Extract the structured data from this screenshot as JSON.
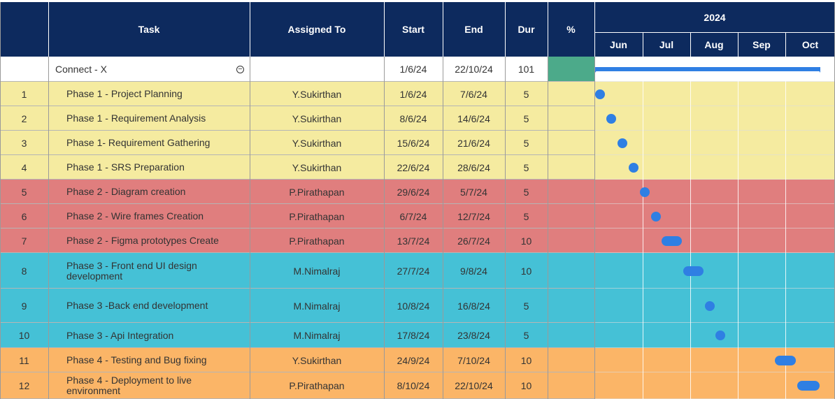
{
  "headers": {
    "task": "Task",
    "assigned": "Assigned To",
    "start": "Start",
    "end": "End",
    "dur": "Dur",
    "pct": "%",
    "year": "2024",
    "months": [
      "Jun",
      "Jul",
      "Aug",
      "Sep",
      "Oct"
    ]
  },
  "summary": {
    "task": "Connect - X",
    "start": "1/6/24",
    "end": "22/10/24",
    "dur": "101",
    "collapse_icon": "minus-circle-icon",
    "pct_color": "#4caa8a"
  },
  "colors": {
    "header": "#0d2a5e",
    "phase1": "#f5eba0",
    "phase2": "#e07e7e",
    "phase3": "#45c1d6",
    "phase4": "#fbb567",
    "bar": "#2f7fe3"
  },
  "rows": [
    {
      "id": "1",
      "task": "Phase 1 - Project Planning",
      "assigned": "Y.Sukirthan",
      "start": "1/6/24",
      "end": "7/6/24",
      "dur": "5",
      "phase": "phase1"
    },
    {
      "id": "2",
      "task": "Phase 1 - Requirement Analysis",
      "assigned": "Y.Sukirthan",
      "start": "8/6/24",
      "end": "14/6/24",
      "dur": "5",
      "phase": "phase1"
    },
    {
      "id": "3",
      "task": "Phase 1- Requirement Gathering",
      "assigned": "Y.Sukirthan",
      "start": "15/6/24",
      "end": "21/6/24",
      "dur": "5",
      "phase": "phase1"
    },
    {
      "id": "4",
      "task": "Phase 1 - SRS Preparation",
      "assigned": "Y.Sukirthan",
      "start": "22/6/24",
      "end": "28/6/24",
      "dur": "5",
      "phase": "phase1"
    },
    {
      "id": "5",
      "task": "Phase 2 - Diagram creation",
      "assigned": "P.Pirathapan",
      "start": "29/6/24",
      "end": "5/7/24",
      "dur": "5",
      "phase": "phase2"
    },
    {
      "id": "6",
      "task": "Phase 2 - Wire frames Creation",
      "assigned": "P.Pirathapan",
      "start": "6/7/24",
      "end": "12/7/24",
      "dur": "5",
      "phase": "phase2"
    },
    {
      "id": "7",
      "task": "Phase 2 - Figma prototypes Create",
      "assigned": "P.Pirathapan",
      "start": "13/7/24",
      "end": "26/7/24",
      "dur": "10",
      "phase": "phase2"
    },
    {
      "id": "8",
      "task": "Phase 3 - Front end UI design development",
      "assigned": "M.Nimalraj",
      "start": "27/7/24",
      "end": "9/8/24",
      "dur": "10",
      "phase": "phase3"
    },
    {
      "id": "9",
      "task": "Phase 3 -Back end development",
      "assigned": "M.Nimalraj",
      "start": "10/8/24",
      "end": "16/8/24",
      "dur": "5",
      "phase": "phase3"
    },
    {
      "id": "10",
      "task": "Phase 3 - Api Integration",
      "assigned": "M.Nimalraj",
      "start": "17/8/24",
      "end": "23/8/24",
      "dur": "5",
      "phase": "phase3"
    },
    {
      "id": "11",
      "task": "Phase 4 - Testing and  Bug fixing",
      "assigned": "Y.Sukirthan",
      "start": "24/9/24",
      "end": "7/10/24",
      "dur": "10",
      "phase": "phase4"
    },
    {
      "id": "12",
      "task": "Phase 4 - Deployment to live environment",
      "assigned": "P.Pirathapan",
      "start": "8/10/24",
      "end": "22/10/24",
      "dur": "10",
      "phase": "phase4"
    }
  ]
}
